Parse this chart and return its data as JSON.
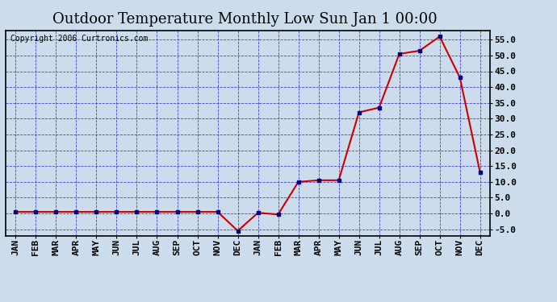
{
  "title": "Outdoor Temperature Monthly Low Sun Jan 1 00:00",
  "copyright": "Copyright 2006 Curtronics.com",
  "x_labels": [
    "JAN",
    "FEB",
    "MAR",
    "APR",
    "MAY",
    "JUN",
    "JUL",
    "AUG",
    "SEP",
    "OCT",
    "NOV",
    "DEC",
    "JAN",
    "FEB",
    "MAR",
    "APR",
    "MAY",
    "JUN",
    "JUL",
    "AUG",
    "SEP",
    "OCT",
    "NOV",
    "DEC"
  ],
  "y_values": [
    0.5,
    0.5,
    0.5,
    0.5,
    0.5,
    0.5,
    0.5,
    0.5,
    0.5,
    0.5,
    0.5,
    -5.5,
    0.2,
    -0.3,
    10.0,
    10.5,
    10.5,
    32.0,
    33.5,
    50.5,
    51.5,
    56.0,
    43.0,
    13.0
  ],
  "ylim": [
    -7.0,
    58.0
  ],
  "yticks": [
    -5.0,
    0.0,
    5.0,
    10.0,
    15.0,
    20.0,
    25.0,
    30.0,
    35.0,
    40.0,
    45.0,
    50.0,
    55.0
  ],
  "line_color": "#cc0000",
  "marker_color": "#000080",
  "grid_color": "#3333cc",
  "bg_color": "#ccdcec",
  "border_color": "#000000",
  "title_fontsize": 13,
  "copyright_fontsize": 7,
  "axis_label_fontsize": 8
}
